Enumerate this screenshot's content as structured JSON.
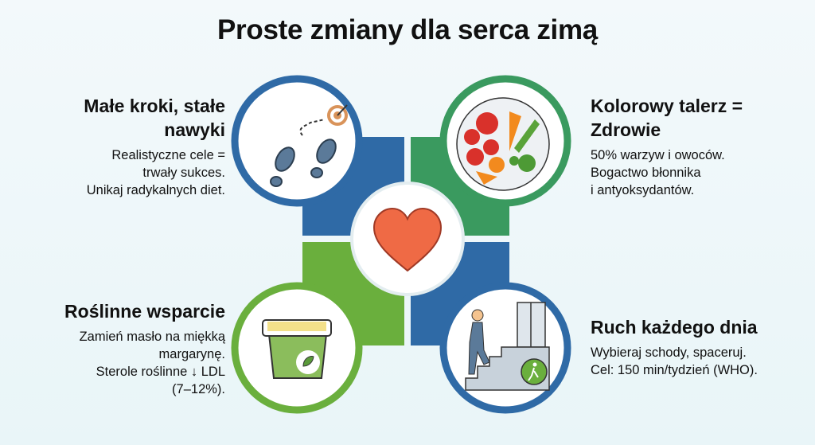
{
  "title": "Proste zmiany dla serca zimą",
  "colors": {
    "blue": "#2f6aa6",
    "green_dark": "#3a9a5f",
    "green_light": "#6aaf3d",
    "heart": "#ef6a45",
    "background": "#eef7fa"
  },
  "center": {
    "icon": "heart-icon"
  },
  "sections": [
    {
      "title": "Małe kroki, stałe nawyki",
      "icon": "footsteps-target-icon",
      "lines": [
        "Realistyczne cele =",
        "trwały sukces.",
        "Unikaj radykalnych diet."
      ]
    },
    {
      "title": "Kolorowy talerz = Zdrowie",
      "icon": "vegetable-plate-icon",
      "lines": [
        "50% warzyw i owoców.",
        "Bogactwo błonnika",
        "i antyoksydantów."
      ]
    },
    {
      "title": "Roślinne wsparcie",
      "icon": "margarine-tub-icon",
      "lines": [
        "Zamień masło na miękką",
        "margarynę.",
        "Sterole roślinne ↓ LDL",
        "(7–12%)."
      ]
    },
    {
      "title": "Ruch każdego dnia",
      "icon": "stairs-walking-icon",
      "lines": [
        "Wybieraj schody, spaceruj.",
        "Cel: 150 min/tydzień (WHO)."
      ]
    }
  ]
}
